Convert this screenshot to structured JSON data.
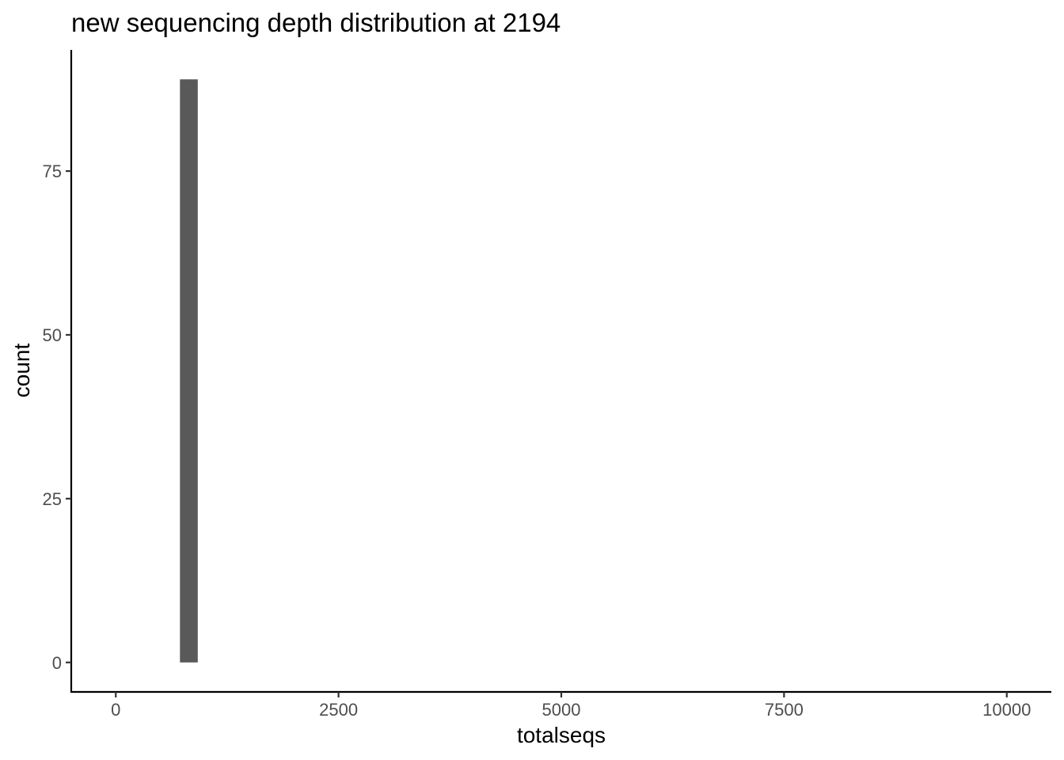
{
  "chart_data": {
    "type": "bar",
    "title": "new sequencing depth distribution at 2194",
    "xlabel": "totalseqs",
    "ylabel": "count",
    "x_ticks": [
      0,
      2500,
      5000,
      7500,
      10000
    ],
    "y_ticks": [
      0,
      25,
      50,
      75
    ],
    "xlim": [
      -500,
      10500
    ],
    "ylim": [
      -4.5,
      93.5
    ],
    "bars": [
      {
        "x0": 720,
        "x1": 920,
        "count": 89
      }
    ],
    "bar_color": "#595959",
    "grid": false
  }
}
